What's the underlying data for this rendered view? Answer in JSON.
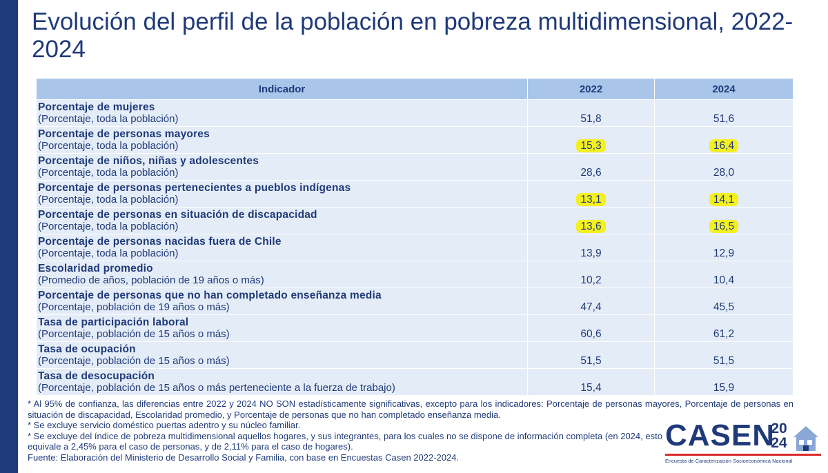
{
  "title": "Evolución del perfil de la población en pobreza multidimensional, 2022-2024",
  "table": {
    "headers": [
      "Indicador",
      "2022",
      "2024"
    ],
    "rows": [
      {
        "indicator": "Porcentaje de mujeres",
        "note": "(Porcentaje, toda la población)",
        "v2022": "51,8",
        "v2024": "51,6",
        "highlighted": false
      },
      {
        "indicator": "Porcentaje de personas mayores",
        "note": "(Porcentaje, toda la población)",
        "v2022": "15,3",
        "v2024": "16,4",
        "highlighted": true
      },
      {
        "indicator": "Porcentaje de niños, niñas y adolescentes",
        "note": "(Porcentaje, toda la población)",
        "v2022": "28,6",
        "v2024": "28,0",
        "highlighted": false
      },
      {
        "indicator": "Porcentaje de personas pertenecientes a pueblos indígenas",
        "note": "(Porcentaje, toda la población)",
        "v2022": "13,1",
        "v2024": "14,1",
        "highlighted": true
      },
      {
        "indicator": "Porcentaje de personas en situación de discapacidad",
        "note": "(Porcentaje, toda la población)",
        "v2022": "13,6",
        "v2024": "16,5",
        "highlighted": true
      },
      {
        "indicator": "Porcentaje de personas nacidas fuera de Chile",
        "note": "(Porcentaje, toda la población)",
        "v2022": "13,9",
        "v2024": "12,9",
        "highlighted": false
      },
      {
        "indicator": "Escolaridad promedio",
        "note": "(Promedio de años, población de 19 años o más)",
        "v2022": "10,2",
        "v2024": "10,4",
        "highlighted": false
      },
      {
        "indicator": "Porcentaje de personas que no han completado enseñanza media",
        "note": "(Porcentaje, población de 19 años o más)",
        "v2022": "47,4",
        "v2024": "45,5",
        "highlighted": false
      },
      {
        "indicator": "Tasa de participación laboral",
        "note": "(Porcentaje, población de 15 años o más)",
        "v2022": "60,6",
        "v2024": "61,2",
        "highlighted": false
      },
      {
        "indicator": "Tasa de ocupación",
        "note": "(Porcentaje, población de 15 años o más)",
        "v2022": "51,5",
        "v2024": "51,5",
        "highlighted": false
      },
      {
        "indicator": "Tasa de desocupación",
        "note": "(Porcentaje, población de 15 años o más perteneciente a la fuerza de trabajo)",
        "v2022": "15,4",
        "v2024": "15,9",
        "highlighted": false
      }
    ]
  },
  "footnotes": [
    "* Al 95% de confianza, las diferencias entre 2022 y 2024 NO SON estadísticamente significativas, excepto para los indicadores: Porcentaje de personas mayores, Porcentaje de personas en situación de discapacidad, Escolaridad promedio, y Porcentaje de personas que no han completado enseñanza media.",
    "* Se excluye servicio doméstico puertas adentro y su núcleo familiar.",
    "* Se excluye del índice de pobreza multidimensional aquellos hogares, y sus integrantes, para los cuales no se dispone de información completa (en 2024, esto equivale a 2,45% para el caso de personas, y de 2,11% para el caso de hogares).",
    "Fuente: Elaboración del Ministerio de Desarrollo Social y Familia, con base en Encuestas Casen 2022-2024."
  ],
  "logo": {
    "word": "CASEN",
    "year_top": "20",
    "year_bottom": "24",
    "subtitle": "Encuesta de Caracterización Socioeconómica Nacional"
  },
  "colors": {
    "navy": "#1f3a7a",
    "header_bg": "#a9c6ea",
    "row_bg": "#e4ecf7",
    "highlight": "#f4f020",
    "logo_red": "#d92b2b"
  }
}
